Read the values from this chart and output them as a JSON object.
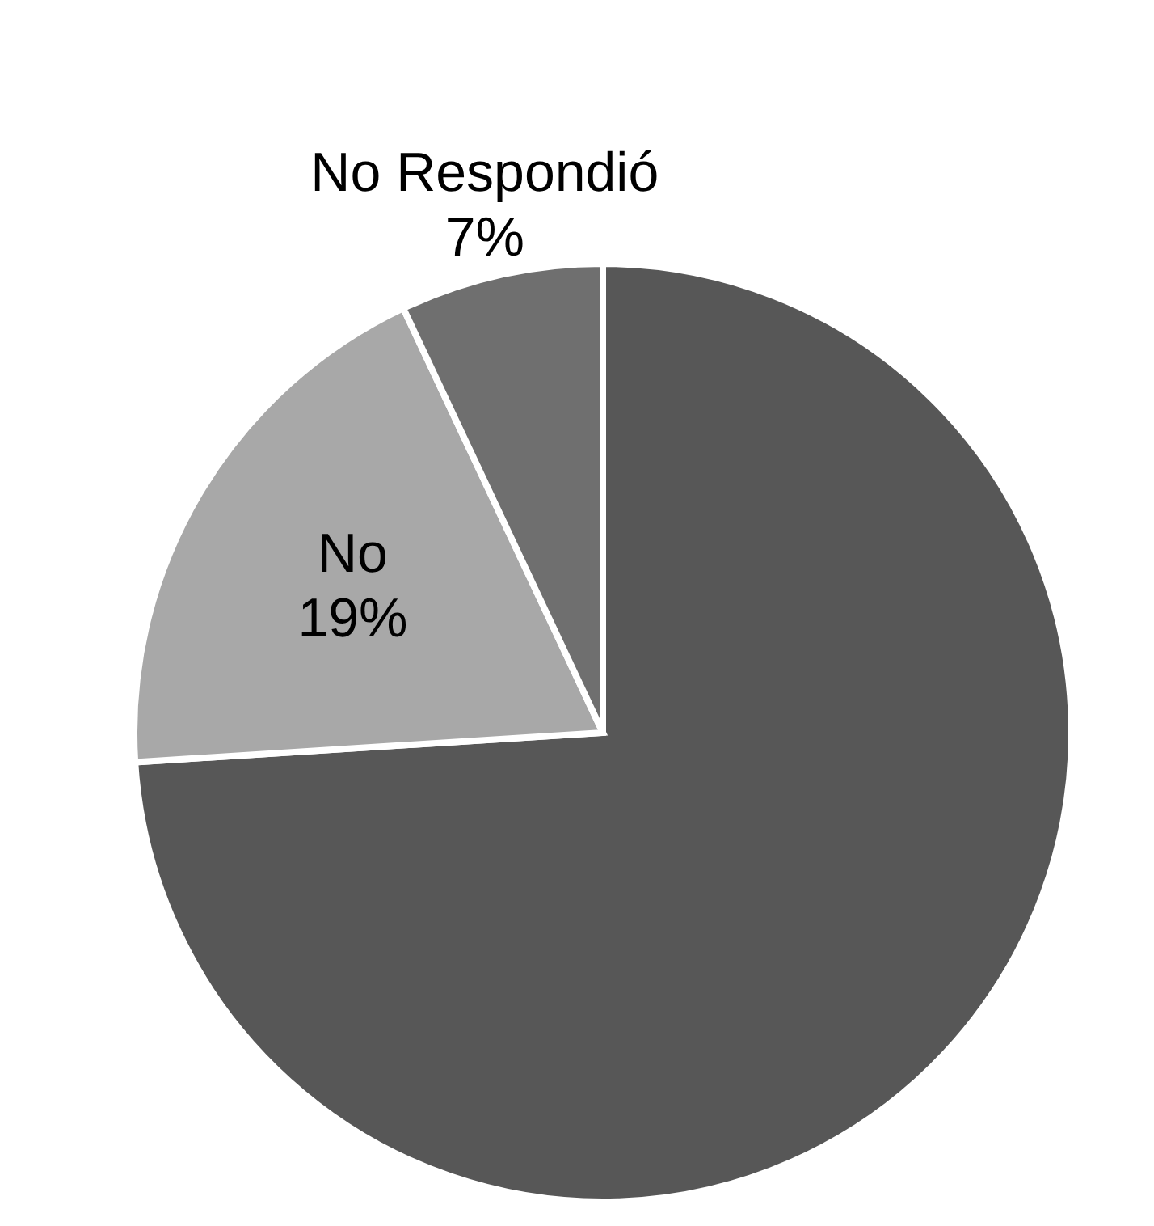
{
  "chart_data": {
    "type": "pie",
    "categories": [
      null,
      "No",
      "No Respondió"
    ],
    "values": [
      74,
      19,
      7
    ],
    "colors": [
      "#575757",
      "#a8a8a8",
      "#6f6f6f"
    ],
    "value_labels": [
      null,
      "19%",
      "7%"
    ]
  }
}
